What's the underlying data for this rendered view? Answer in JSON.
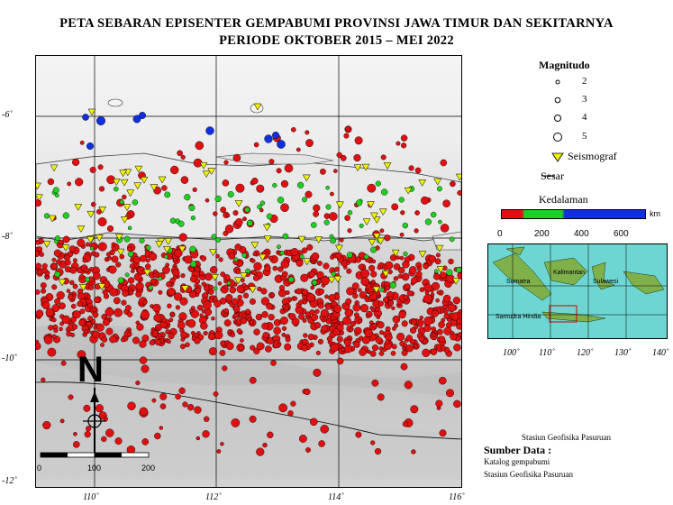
{
  "title_line1": "PETA SEBARAN EPISENTER GEMPABUMI PROVINSI JAWA TIMUR DAN SEKITARNYA",
  "title_line2": "PERIODE OKTOBER 2015 – MEI 2022",
  "axes": {
    "lat_labels": [
      "-6˚",
      "-8˚",
      "-10˚",
      "-12˚"
    ],
    "lon_labels": [
      "110˚",
      "112˚",
      "114˚",
      "116˚"
    ]
  },
  "north_arrow": "N",
  "scale_bar": {
    "labels": [
      "0",
      "100",
      "200"
    ]
  },
  "legend": {
    "magnitude_title": "Magnitudo",
    "magnitudes": [
      "2",
      "3",
      "4",
      "5"
    ],
    "seismograph": "Seismograf",
    "fault": "Sesar",
    "depth_title": "Kedalaman",
    "depth_unit": "km",
    "depth_ticks": [
      "0",
      "200",
      "400",
      "600"
    ],
    "colors": {
      "shallow": "#e01010",
      "intermediate": "#20d020",
      "deep": "#1030e0",
      "seismograph": "#f0f000"
    }
  },
  "inset": {
    "labels": [
      "Kalimantan",
      "Sulawesi",
      "Sumatra",
      "Samudra Hindia"
    ],
    "lon_labels": [
      "100˚",
      "110˚",
      "120˚",
      "130˚",
      "140˚"
    ]
  },
  "credits": {
    "station": "Stasiun Geofisika Pasuruan",
    "source_title": "Sumber Data :",
    "source_line1": "Katalog gempabumi",
    "source_line2": "Stasiun Geofisika Pasuruan"
  }
}
